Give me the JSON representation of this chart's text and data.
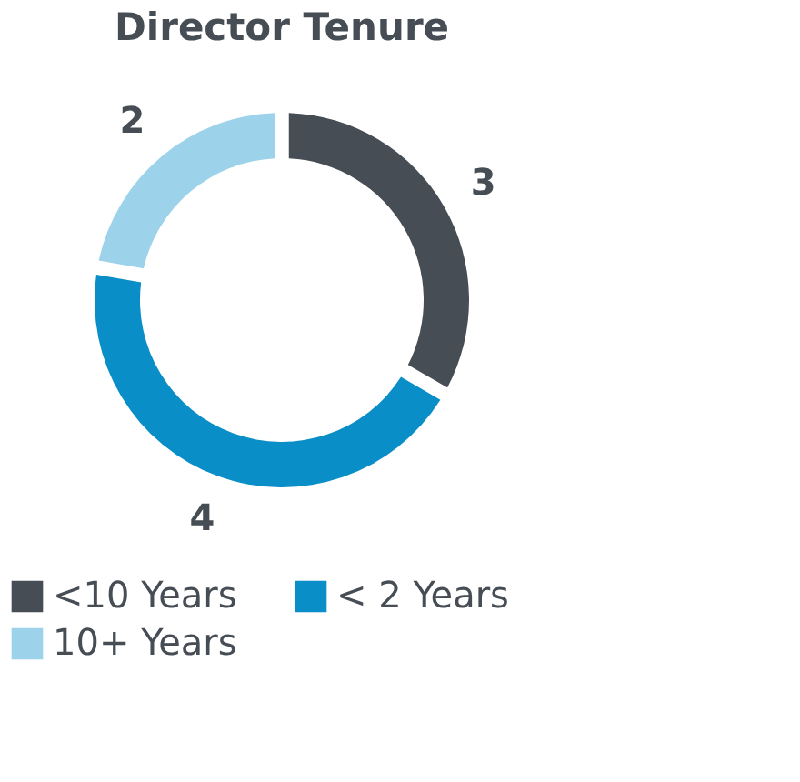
{
  "chart_data": {
    "type": "donut",
    "title": "Director Tenure",
    "categories": [
      "<10 Years",
      "< 2 Years",
      "10+ Years"
    ],
    "values": [
      3,
      4,
      2
    ],
    "colors": [
      "#464d54",
      "#0a8ec7",
      "#9dd3ea"
    ],
    "data_labels": true,
    "legend": "bottom"
  }
}
